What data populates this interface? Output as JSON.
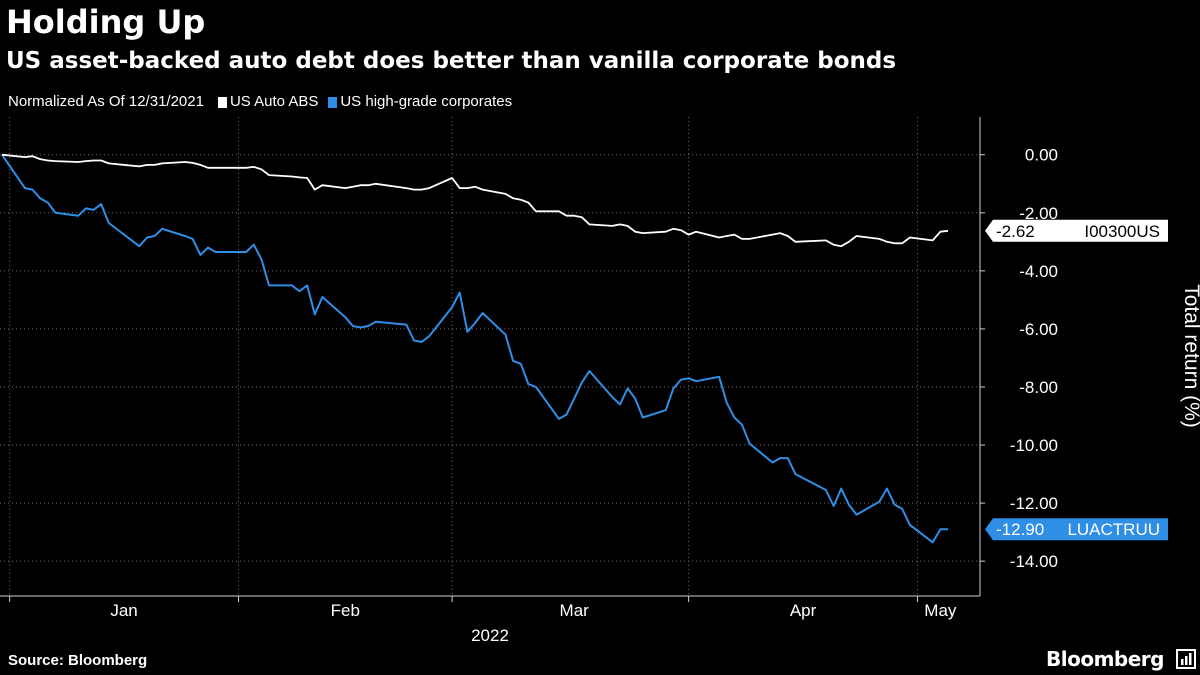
{
  "title": "Holding Up",
  "subtitle": "US asset-backed auto debt does better than vanilla corporate bonds",
  "legend": {
    "note": "Normalized As Of 12/31/2021",
    "entries": [
      {
        "label": "US Auto ABS",
        "color": "#ffffff"
      },
      {
        "label": "US high-grade corporates",
        "color": "#2f8ee6"
      }
    ]
  },
  "footer": {
    "source": "Source: Bloomberg",
    "brand": "Bloomberg",
    "brand_icon": "bloomberg-terminal-icon"
  },
  "chart_data": {
    "type": "line",
    "ylabel": "Total return (%)",
    "xlabel": "2022",
    "ylim": [
      -15.2,
      1.3
    ],
    "y_ticks": [
      0,
      -2,
      -4,
      -6,
      -8,
      -10,
      -12,
      -14
    ],
    "y_tick_labels": [
      "0.00",
      "-2.00",
      "-4.00",
      "-6.00",
      "-8.00",
      "-10.00",
      "-12.00",
      "-14.00"
    ],
    "x_start": "2021-12-31",
    "x_end": "2022-05-04",
    "month_labels": [
      {
        "label": "Jan",
        "date": "2022-01-16"
      },
      {
        "label": "Feb",
        "date": "2022-02-14"
      },
      {
        "label": "Mar",
        "date": "2022-03-16"
      },
      {
        "label": "Apr",
        "date": "2022-04-15"
      },
      {
        "label": "May",
        "date": "2022-05-03"
      }
    ],
    "grid_dates": [
      "2022-01-01",
      "2022-01-31",
      "2022-02-28",
      "2022-03-31",
      "2022-04-30"
    ],
    "grid": true,
    "series": [
      {
        "name": "US Auto ABS",
        "ticker": "I00300US",
        "last_value": -2.62,
        "color": "#ffffff",
        "points": [
          [
            "2021-12-31",
            0.0
          ],
          [
            "2022-01-03",
            -0.08
          ],
          [
            "2022-01-04",
            -0.05
          ],
          [
            "2022-01-05",
            -0.15
          ],
          [
            "2022-01-06",
            -0.2
          ],
          [
            "2022-01-07",
            -0.22
          ],
          [
            "2022-01-10",
            -0.25
          ],
          [
            "2022-01-11",
            -0.22
          ],
          [
            "2022-01-12",
            -0.2
          ],
          [
            "2022-01-13",
            -0.2
          ],
          [
            "2022-01-14",
            -0.3
          ],
          [
            "2022-01-18",
            -0.4
          ],
          [
            "2022-01-19",
            -0.35
          ],
          [
            "2022-01-20",
            -0.35
          ],
          [
            "2022-01-21",
            -0.3
          ],
          [
            "2022-01-24",
            -0.25
          ],
          [
            "2022-01-25",
            -0.28
          ],
          [
            "2022-01-26",
            -0.35
          ],
          [
            "2022-01-27",
            -0.45
          ],
          [
            "2022-01-28",
            -0.45
          ],
          [
            "2022-01-31",
            -0.45
          ],
          [
            "2022-02-01",
            -0.45
          ],
          [
            "2022-02-02",
            -0.42
          ],
          [
            "2022-02-03",
            -0.5
          ],
          [
            "2022-02-04",
            -0.7
          ],
          [
            "2022-02-07",
            -0.75
          ],
          [
            "2022-02-08",
            -0.78
          ],
          [
            "2022-02-09",
            -0.8
          ],
          [
            "2022-02-10",
            -1.2
          ],
          [
            "2022-02-11",
            -1.05
          ],
          [
            "2022-02-14",
            -1.15
          ],
          [
            "2022-02-15",
            -1.1
          ],
          [
            "2022-02-16",
            -1.05
          ],
          [
            "2022-02-17",
            -1.05
          ],
          [
            "2022-02-18",
            -1.0
          ],
          [
            "2022-02-22",
            -1.15
          ],
          [
            "2022-02-23",
            -1.2
          ],
          [
            "2022-02-24",
            -1.2
          ],
          [
            "2022-02-25",
            -1.15
          ],
          [
            "2022-02-28",
            -0.8
          ],
          [
            "2022-03-01",
            -1.15
          ],
          [
            "2022-03-02",
            -1.15
          ],
          [
            "2022-03-03",
            -1.1
          ],
          [
            "2022-03-04",
            -1.2
          ],
          [
            "2022-03-07",
            -1.35
          ],
          [
            "2022-03-08",
            -1.5
          ],
          [
            "2022-03-09",
            -1.55
          ],
          [
            "2022-03-10",
            -1.65
          ],
          [
            "2022-03-11",
            -1.95
          ],
          [
            "2022-03-14",
            -1.95
          ],
          [
            "2022-03-15",
            -2.1
          ],
          [
            "2022-03-16",
            -2.1
          ],
          [
            "2022-03-17",
            -2.15
          ],
          [
            "2022-03-18",
            -2.4
          ],
          [
            "2022-03-21",
            -2.45
          ],
          [
            "2022-03-22",
            -2.4
          ],
          [
            "2022-03-23",
            -2.45
          ],
          [
            "2022-03-24",
            -2.65
          ],
          [
            "2022-03-25",
            -2.7
          ],
          [
            "2022-03-28",
            -2.65
          ],
          [
            "2022-03-29",
            -2.55
          ],
          [
            "2022-03-30",
            -2.6
          ],
          [
            "2022-03-31",
            -2.75
          ],
          [
            "2022-04-01",
            -2.65
          ],
          [
            "2022-04-04",
            -2.85
          ],
          [
            "2022-04-05",
            -2.8
          ],
          [
            "2022-04-06",
            -2.75
          ],
          [
            "2022-04-07",
            -2.9
          ],
          [
            "2022-04-08",
            -2.9
          ],
          [
            "2022-04-11",
            -2.75
          ],
          [
            "2022-04-12",
            -2.7
          ],
          [
            "2022-04-13",
            -2.8
          ],
          [
            "2022-04-14",
            -3.0
          ],
          [
            "2022-04-18",
            -2.95
          ],
          [
            "2022-04-19",
            -3.1
          ],
          [
            "2022-04-20",
            -3.15
          ],
          [
            "2022-04-21",
            -3.0
          ],
          [
            "2022-04-22",
            -2.8
          ],
          [
            "2022-04-25",
            -2.9
          ],
          [
            "2022-04-26",
            -3.0
          ],
          [
            "2022-04-27",
            -3.05
          ],
          [
            "2022-04-28",
            -3.05
          ],
          [
            "2022-04-29",
            -2.85
          ],
          [
            "2022-05-02",
            -2.95
          ],
          [
            "2022-05-03",
            -2.65
          ],
          [
            "2022-05-04",
            -2.62
          ]
        ]
      },
      {
        "name": "US high-grade corporates",
        "ticker": "LUACTRUU",
        "last_value": -12.9,
        "color": "#2f8ee6",
        "points": [
          [
            "2021-12-31",
            0.0
          ],
          [
            "2022-01-03",
            -1.15
          ],
          [
            "2022-01-04",
            -1.2
          ],
          [
            "2022-01-05",
            -1.5
          ],
          [
            "2022-01-06",
            -1.65
          ],
          [
            "2022-01-07",
            -2.0
          ],
          [
            "2022-01-10",
            -2.1
          ],
          [
            "2022-01-11",
            -1.85
          ],
          [
            "2022-01-12",
            -1.9
          ],
          [
            "2022-01-13",
            -1.7
          ],
          [
            "2022-01-14",
            -2.35
          ],
          [
            "2022-01-18",
            -3.15
          ],
          [
            "2022-01-19",
            -2.85
          ],
          [
            "2022-01-20",
            -2.8
          ],
          [
            "2022-01-21",
            -2.55
          ],
          [
            "2022-01-24",
            -2.8
          ],
          [
            "2022-01-25",
            -2.9
          ],
          [
            "2022-01-26",
            -3.45
          ],
          [
            "2022-01-27",
            -3.2
          ],
          [
            "2022-01-28",
            -3.35
          ],
          [
            "2022-01-31",
            -3.35
          ],
          [
            "2022-02-01",
            -3.35
          ],
          [
            "2022-02-02",
            -3.1
          ],
          [
            "2022-02-03",
            -3.6
          ],
          [
            "2022-02-04",
            -4.5
          ],
          [
            "2022-02-07",
            -4.5
          ],
          [
            "2022-02-08",
            -4.7
          ],
          [
            "2022-02-09",
            -4.5
          ],
          [
            "2022-02-10",
            -5.5
          ],
          [
            "2022-02-11",
            -4.9
          ],
          [
            "2022-02-14",
            -5.6
          ],
          [
            "2022-02-15",
            -5.9
          ],
          [
            "2022-02-16",
            -5.95
          ],
          [
            "2022-02-17",
            -5.9
          ],
          [
            "2022-02-18",
            -5.75
          ],
          [
            "2022-02-22",
            -5.85
          ],
          [
            "2022-02-23",
            -6.4
          ],
          [
            "2022-02-24",
            -6.45
          ],
          [
            "2022-02-25",
            -6.25
          ],
          [
            "2022-02-28",
            -5.25
          ],
          [
            "2022-03-01",
            -4.75
          ],
          [
            "2022-03-02",
            -6.1
          ],
          [
            "2022-03-03",
            -5.8
          ],
          [
            "2022-03-04",
            -5.45
          ],
          [
            "2022-03-07",
            -6.2
          ],
          [
            "2022-03-08",
            -7.1
          ],
          [
            "2022-03-09",
            -7.2
          ],
          [
            "2022-03-10",
            -7.9
          ],
          [
            "2022-03-11",
            -8.0
          ],
          [
            "2022-03-14",
            -9.1
          ],
          [
            "2022-03-15",
            -8.95
          ],
          [
            "2022-03-16",
            -8.4
          ],
          [
            "2022-03-17",
            -7.85
          ],
          [
            "2022-03-18",
            -7.45
          ],
          [
            "2022-03-21",
            -8.35
          ],
          [
            "2022-03-22",
            -8.6
          ],
          [
            "2022-03-23",
            -8.05
          ],
          [
            "2022-03-24",
            -8.4
          ],
          [
            "2022-03-25",
            -9.05
          ],
          [
            "2022-03-28",
            -8.8
          ],
          [
            "2022-03-29",
            -8.05
          ],
          [
            "2022-03-30",
            -7.75
          ],
          [
            "2022-03-31",
            -7.7
          ],
          [
            "2022-04-01",
            -7.8
          ],
          [
            "2022-04-04",
            -7.65
          ],
          [
            "2022-04-05",
            -8.55
          ],
          [
            "2022-04-06",
            -9.05
          ],
          [
            "2022-04-07",
            -9.3
          ],
          [
            "2022-04-08",
            -9.95
          ],
          [
            "2022-04-11",
            -10.6
          ],
          [
            "2022-04-12",
            -10.45
          ],
          [
            "2022-04-13",
            -10.45
          ],
          [
            "2022-04-14",
            -11.0
          ],
          [
            "2022-04-18",
            -11.55
          ],
          [
            "2022-04-19",
            -12.1
          ],
          [
            "2022-04-20",
            -11.5
          ],
          [
            "2022-04-21",
            -12.05
          ],
          [
            "2022-04-22",
            -12.4
          ],
          [
            "2022-04-25",
            -11.95
          ],
          [
            "2022-04-26",
            -11.5
          ],
          [
            "2022-04-27",
            -12.05
          ],
          [
            "2022-04-28",
            -12.2
          ],
          [
            "2022-04-29",
            -12.75
          ],
          [
            "2022-05-02",
            -13.35
          ],
          [
            "2022-05-03",
            -12.9
          ],
          [
            "2022-05-04",
            -12.9
          ]
        ]
      }
    ]
  }
}
